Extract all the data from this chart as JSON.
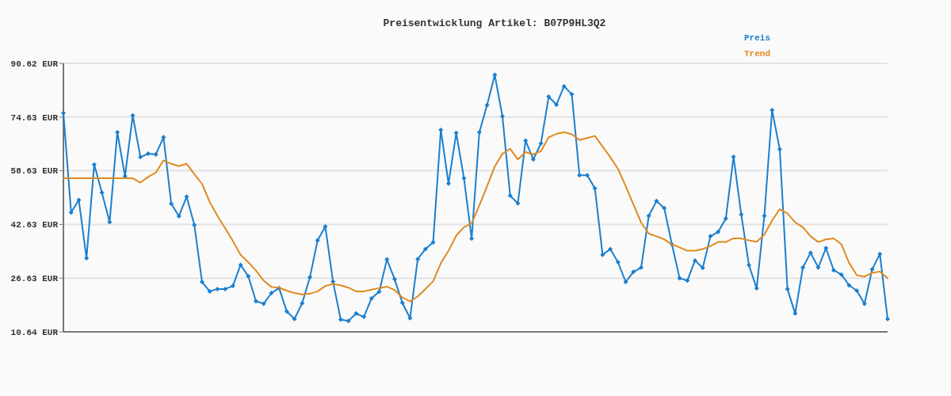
{
  "chart_data": {
    "type": "line",
    "title": "Preisentwicklung Artikel: B07P9HL3Q2",
    "categories": [
      null,
      null,
      null,
      null,
      null,
      null,
      null,
      null,
      null,
      null,
      null,
      null,
      null,
      null,
      null,
      null,
      null,
      null,
      null,
      null,
      null,
      null,
      null,
      null,
      null,
      null,
      null,
      null,
      null,
      null,
      null,
      null,
      null,
      null,
      null,
      null,
      null,
      null,
      null,
      null,
      null,
      null,
      null,
      null,
      null,
      null,
      null,
      null,
      null,
      null,
      null,
      null,
      null,
      null,
      null,
      null,
      null,
      null,
      null,
      null,
      null,
      null,
      null,
      null,
      null,
      null,
      null,
      null,
      null,
      null,
      null,
      null,
      null,
      null,
      null,
      null,
      null,
      null,
      null,
      null,
      null,
      null,
      null,
      null,
      null,
      null,
      null,
      null,
      null,
      null,
      null,
      null,
      null,
      null,
      null,
      null,
      null,
      null,
      null,
      null,
      null,
      null,
      null,
      null,
      null,
      null,
      null,
      null
    ],
    "series": [
      {
        "name": "Preis",
        "color": "#1a7fcf",
        "marker": "diamond",
        "values": [
          75.8,
          46.2,
          49.9,
          32.6,
          60.5,
          52.1,
          43.3,
          70.1,
          57.0,
          75.1,
          62.7,
          63.7,
          63.5,
          68.6,
          48.8,
          45.1,
          50.9,
          42.5,
          25.5,
          22.7,
          23.4,
          23.4,
          24.3,
          30.6,
          27.2,
          19.8,
          19.0,
          22.2,
          23.7,
          16.7,
          14.5,
          19.2,
          26.9,
          37.9,
          42.0,
          25.6,
          14.3,
          13.9,
          16.1,
          15.1,
          20.6,
          22.6,
          32.2,
          26.3,
          19.3,
          14.7,
          32.3,
          35.3,
          37.3,
          70.8,
          54.8,
          69.9,
          56.4,
          38.4,
          70.1,
          78.2,
          87.2,
          74.8,
          51.2,
          48.9,
          67.6,
          62.0,
          66.8,
          80.7,
          78.3,
          83.8,
          81.4,
          57.3,
          57.3,
          53.4,
          33.6,
          35.3,
          31.4,
          25.5,
          28.5,
          29.8,
          45.2,
          49.6,
          47.5,
          36.7,
          26.6,
          25.9,
          31.9,
          29.7,
          39.1,
          40.4,
          44.4,
          62.8,
          45.6,
          30.5,
          23.6,
          45.2,
          76.7,
          65.0,
          23.4,
          16.1,
          29.8,
          34.2,
          29.8,
          35.6,
          29.0,
          27.7,
          24.5,
          22.9,
          19.0,
          29.3,
          33.8,
          14.5
        ]
      },
      {
        "name": "Trend",
        "color": "#e08a1e",
        "marker": "none",
        "values": [
          56.4,
          56.4,
          56.4,
          56.4,
          56.4,
          56.4,
          56.4,
          56.4,
          56.4,
          56.4,
          55.1,
          56.8,
          58.1,
          61.7,
          60.7,
          60.0,
          60.7,
          57.6,
          54.7,
          49.3,
          45.2,
          41.5,
          37.7,
          33.6,
          31.4,
          28.9,
          25.9,
          24.0,
          23.8,
          22.9,
          22.2,
          21.8,
          22.0,
          22.7,
          24.3,
          24.9,
          24.5,
          23.8,
          22.7,
          22.7,
          23.2,
          23.7,
          24.1,
          23.1,
          20.9,
          19.7,
          21.2,
          23.4,
          25.7,
          31.1,
          34.8,
          39.3,
          41.8,
          43.0,
          48.3,
          54.0,
          59.9,
          63.7,
          65.2,
          62.0,
          64.2,
          63.5,
          64.5,
          68.6,
          69.6,
          70.1,
          69.5,
          67.8,
          68.4,
          69.0,
          65.8,
          62.7,
          59.2,
          54.0,
          48.6,
          43.2,
          39.9,
          39.1,
          38.2,
          36.7,
          35.8,
          34.8,
          34.8,
          35.3,
          36.2,
          37.4,
          37.4,
          38.5,
          38.5,
          37.9,
          37.5,
          39.6,
          43.8,
          47.2,
          45.9,
          43.3,
          41.8,
          39.1,
          37.4,
          38.2,
          38.5,
          36.7,
          31.2,
          27.5,
          27.1,
          28.2,
          28.6,
          26.6
        ]
      }
    ],
    "ylim": [
      10.64,
      90.62
    ],
    "yticks": [
      {
        "value": 10.64,
        "label": "10.64 EUR"
      },
      {
        "value": 26.63,
        "label": "26.63 EUR"
      },
      {
        "value": 42.63,
        "label": "42.63 EUR"
      },
      {
        "value": 58.63,
        "label": "58.63 EUR"
      },
      {
        "value": 74.63,
        "label": "74.63 EUR"
      },
      {
        "value": 90.62,
        "label": "90.62 EUR"
      }
    ],
    "grid": "y",
    "legend": "top right",
    "line_style": "solid"
  }
}
